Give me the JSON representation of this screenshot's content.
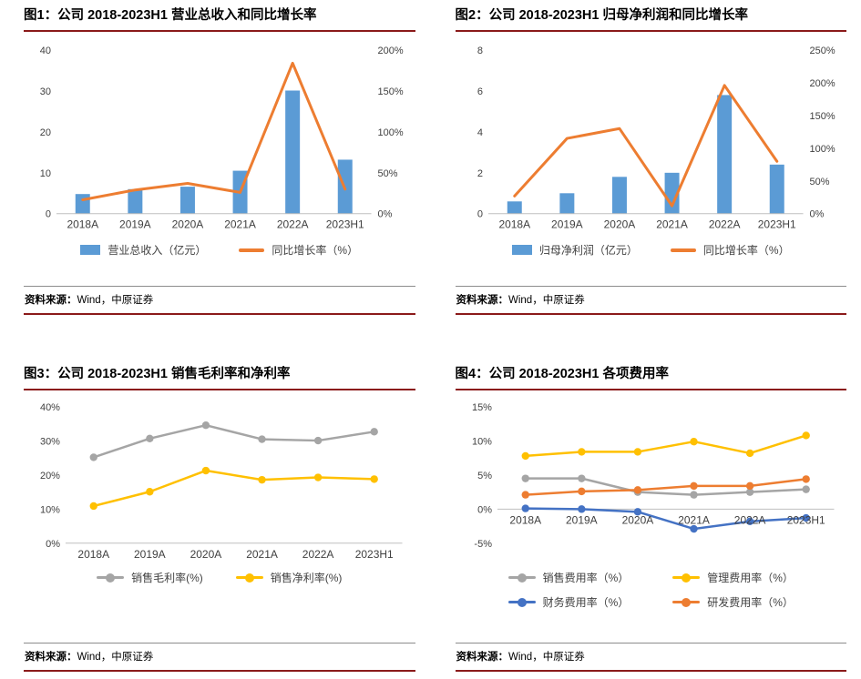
{
  "theme": {
    "title_rule_color": "#8B1A1A",
    "bottom_rule_color": "#8B1A1A",
    "divider_color": "#8C8C8C",
    "axis_text_color": "#404040",
    "axis_line_color": "#BFBFBF",
    "legend_text_color": "#404040"
  },
  "chart_data": [
    {
      "id": "fig1",
      "type": "combo-bar-line",
      "title": "图1：公司 2018-2023H1 营业总收入和同比增长率",
      "categories": [
        "2018A",
        "2019A",
        "2020A",
        "2021A",
        "2022A",
        "2023H1"
      ],
      "left_axis": {
        "min": 0,
        "max": 40,
        "step": 10,
        "suffix": ""
      },
      "right_axis": {
        "min": 0,
        "max": 200,
        "step": 50,
        "suffix": "%"
      },
      "grid": false,
      "legend_position": "bottom",
      "series": [
        {
          "name": "营业总收入（亿元）",
          "type": "bar",
          "axis": "left",
          "color": "#5B9BD5",
          "values": [
            4.8,
            6.0,
            6.6,
            10.5,
            30.1,
            13.2
          ]
        },
        {
          "name": "同比增长率（%）",
          "type": "line",
          "axis": "right",
          "color": "#ED7D31",
          "marker": false,
          "values": [
            17,
            29,
            37,
            26,
            184,
            30
          ]
        }
      ],
      "legend": [
        {
          "label": "营业总收入（亿元）",
          "swatch": "bar",
          "color": "#5B9BD5"
        },
        {
          "label": "同比增长率（%）",
          "swatch": "line",
          "color": "#ED7D31"
        }
      ],
      "source_label": "资料来源：",
      "source_value": "Wind，中原证券"
    },
    {
      "id": "fig2",
      "type": "combo-bar-line",
      "title": "图2：公司 2018-2023H1 归母净利润和同比增长率",
      "categories": [
        "2018A",
        "2019A",
        "2020A",
        "2021A",
        "2022A",
        "2023H1"
      ],
      "left_axis": {
        "min": 0,
        "max": 8,
        "step": 2,
        "suffix": ""
      },
      "right_axis": {
        "min": 0,
        "max": 250,
        "step": 50,
        "suffix": "%"
      },
      "grid": false,
      "legend_position": "bottom",
      "series": [
        {
          "name": "归母净利润（亿元）",
          "type": "bar",
          "axis": "left",
          "color": "#5B9BD5",
          "values": [
            0.6,
            1.0,
            1.8,
            2.0,
            5.8,
            2.4
          ]
        },
        {
          "name": "同比增长率（%）",
          "type": "line",
          "axis": "right",
          "color": "#ED7D31",
          "marker": false,
          "values": [
            27,
            115,
            130,
            12,
            196,
            80
          ]
        }
      ],
      "legend": [
        {
          "label": "归母净利润（亿元）",
          "swatch": "bar",
          "color": "#5B9BD5"
        },
        {
          "label": "同比增长率（%）",
          "swatch": "line",
          "color": "#ED7D31"
        }
      ],
      "source_label": "资料来源：",
      "source_value": "Wind，中原证券"
    },
    {
      "id": "fig3",
      "type": "line",
      "title": "图3：公司 2018-2023H1 销售毛利率和净利率",
      "categories": [
        "2018A",
        "2019A",
        "2020A",
        "2021A",
        "2022A",
        "2023H1"
      ],
      "left_axis": {
        "min": 0,
        "max": 40,
        "step": 10,
        "suffix": "%"
      },
      "grid": false,
      "legend_position": "bottom",
      "series": [
        {
          "name": "销售毛利率(%)",
          "type": "line",
          "axis": "left",
          "color": "#A5A5A5",
          "marker": true,
          "values": [
            25.2,
            30.7,
            34.6,
            30.5,
            30.1,
            32.7
          ]
        },
        {
          "name": "销售净利率(%)",
          "type": "line",
          "axis": "left",
          "color": "#FFC000",
          "marker": true,
          "values": [
            10.9,
            15.1,
            21.3,
            18.6,
            19.3,
            18.8
          ]
        }
      ],
      "legend": [
        {
          "label": "销售毛利率(%)",
          "swatch": "linedot",
          "color": "#A5A5A5"
        },
        {
          "label": "销售净利率(%)",
          "swatch": "linedot",
          "color": "#FFC000"
        }
      ],
      "source_label": "资料来源：",
      "source_value": "Wind，中原证券"
    },
    {
      "id": "fig4",
      "type": "line",
      "title": "图4：公司 2018-2023H1 各项费用率",
      "categories": [
        "2018A",
        "2019A",
        "2020A",
        "2021A",
        "2022A",
        "2023H1"
      ],
      "left_axis": {
        "min": -5,
        "max": 15,
        "step": 5,
        "suffix": "%"
      },
      "grid": false,
      "legend_position": "bottom",
      "series": [
        {
          "name": "销售费用率（%）",
          "type": "line",
          "axis": "left",
          "color": "#A5A5A5",
          "marker": true,
          "values": [
            4.5,
            4.5,
            2.5,
            2.1,
            2.5,
            2.9
          ]
        },
        {
          "name": "管理费用率（%）",
          "type": "line",
          "axis": "left",
          "color": "#FFC000",
          "marker": true,
          "values": [
            7.8,
            8.4,
            8.4,
            9.9,
            8.2,
            10.8
          ]
        },
        {
          "name": "财务费用率（%）",
          "type": "line",
          "axis": "left",
          "color": "#4472C4",
          "marker": true,
          "values": [
            0.1,
            0.0,
            -0.4,
            -2.9,
            -1.8,
            -1.3
          ]
        },
        {
          "name": "研发费用率（%）",
          "type": "line",
          "axis": "left",
          "color": "#ED7D31",
          "marker": true,
          "values": [
            2.1,
            2.6,
            2.8,
            3.4,
            3.4,
            4.4
          ]
        }
      ],
      "legend": [
        {
          "label": "销售费用率（%）",
          "swatch": "linedot",
          "color": "#A5A5A5"
        },
        {
          "label": "管理费用率（%）",
          "swatch": "linedot",
          "color": "#FFC000"
        },
        {
          "label": "财务费用率（%）",
          "swatch": "linedot",
          "color": "#4472C4"
        },
        {
          "label": "研发费用率（%）",
          "swatch": "linedot",
          "color": "#ED7D31"
        }
      ],
      "source_label": "资料来源：",
      "source_value": "Wind，中原证券"
    }
  ]
}
